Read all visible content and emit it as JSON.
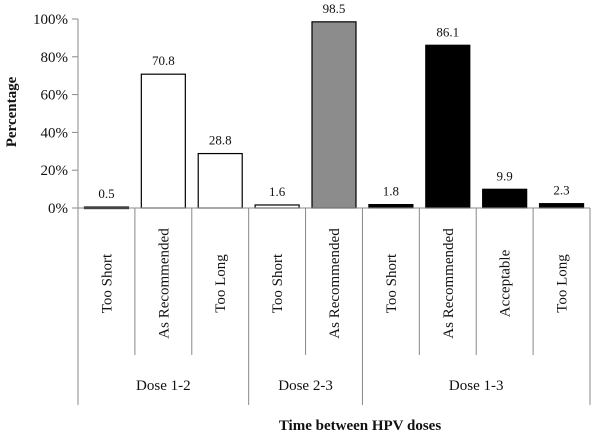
{
  "chart_data": {
    "type": "bar",
    "xlabel": "Time between HPV doses",
    "ylabel": "Percentage",
    "ylim": [
      0,
      100
    ],
    "yticks": [
      "0%",
      "20%",
      "40%",
      "60%",
      "80%",
      "100%"
    ],
    "grid": false,
    "legend": "none",
    "categories": [
      "Too Short",
      "As Recommended",
      "Too Long",
      "Too Short",
      "As Recommended",
      "Too Short",
      "As Recommended",
      "Acceptable",
      "Too Long"
    ],
    "values": [
      0.5,
      70.8,
      28.8,
      1.6,
      98.5,
      1.8,
      86.1,
      9.9,
      2.3
    ],
    "value_labels": [
      "0.5",
      "70.8",
      "28.8",
      "1.6",
      "98.5",
      "1.8",
      "86.1",
      "9.9",
      "2.3"
    ],
    "fills": [
      "#ffffff",
      "#ffffff",
      "#ffffff",
      "#ffffff",
      "#8c8c8c",
      "#000000",
      "#000000",
      "#000000",
      "#000000"
    ],
    "groups": [
      {
        "label": "Dose 1-2",
        "count": 3
      },
      {
        "label": "Dose 2-3",
        "count": 2
      },
      {
        "label": "Dose 1-3",
        "count": 4
      }
    ]
  }
}
